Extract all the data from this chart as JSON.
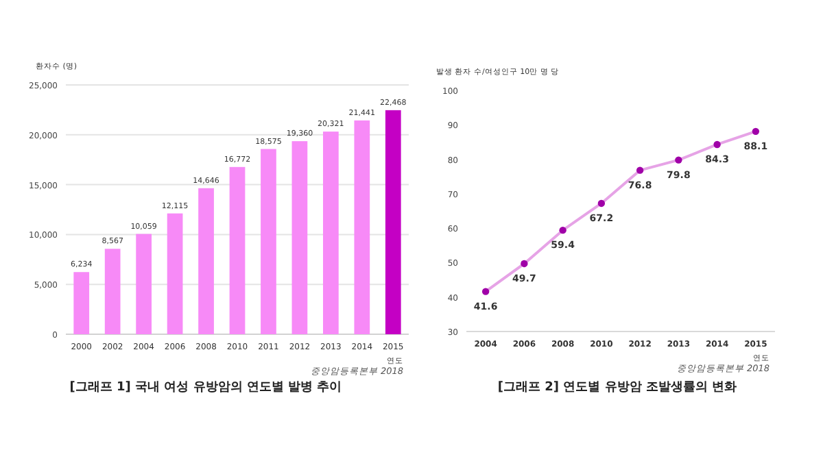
{
  "chart_data": [
    {
      "type": "bar",
      "title": "[그래프 1] 국내 여성 유방암의 연도별 발병 추이",
      "ylabel": "환자수 (명)",
      "xlabel": "연도",
      "annotations": [
        "중앙암등록본부 2018"
      ],
      "categories": [
        "2000",
        "2002",
        "2004",
        "2006",
        "2008",
        "2010",
        "2011",
        "2012",
        "2013",
        "2014",
        "2015"
      ],
      "values": [
        6234,
        8567,
        10059,
        12115,
        14646,
        16772,
        18575,
        19360,
        20321,
        21441,
        22468
      ],
      "colors": [
        "#f78af7",
        "#f78af7",
        "#f78af7",
        "#f78af7",
        "#f78af7",
        "#f78af7",
        "#f78af7",
        "#f78af7",
        "#f78af7",
        "#f78af7",
        "#c400c4"
      ],
      "ylim": [
        0,
        25000
      ],
      "yticks": [
        {
          "value": 0,
          "label": "0"
        },
        {
          "value": 5000,
          "label": "5,000"
        },
        {
          "value": 10000,
          "label": "10,000"
        },
        {
          "value": 15000,
          "label": "15,000"
        },
        {
          "value": 20000,
          "label": "20,000"
        },
        {
          "value": 25000,
          "label": "25,000"
        }
      ],
      "value_labels": [
        "6,234",
        "8,567",
        "10,059",
        "12,115",
        "14,646",
        "16,772",
        "18,575",
        "19,360",
        "20,321",
        "21,441",
        "22,468"
      ],
      "grid": "y"
    },
    {
      "type": "line",
      "title": "[그래프 2] 연도별 유방암 조발생률의 변화",
      "ylabel": "발생 환자 수/여성인구 10만 명 당",
      "xlabel": "연도",
      "annotations": [
        "중앙암등록본부 2018"
      ],
      "categories": [
        "2004",
        "2006",
        "2008",
        "2010",
        "2012",
        "2013",
        "2014",
        "2015"
      ],
      "series": [
        {
          "color": "#e6a3e6",
          "values": [
            41.6,
            49.7,
            59.4,
            67.2,
            76.8,
            79.8,
            84.3,
            88.1
          ]
        }
      ],
      "marker": "circle",
      "ylim": [
        30,
        100
      ],
      "yticks": [
        30,
        40,
        50,
        60,
        70,
        80,
        90,
        100
      ],
      "data_labels": true
    }
  ]
}
